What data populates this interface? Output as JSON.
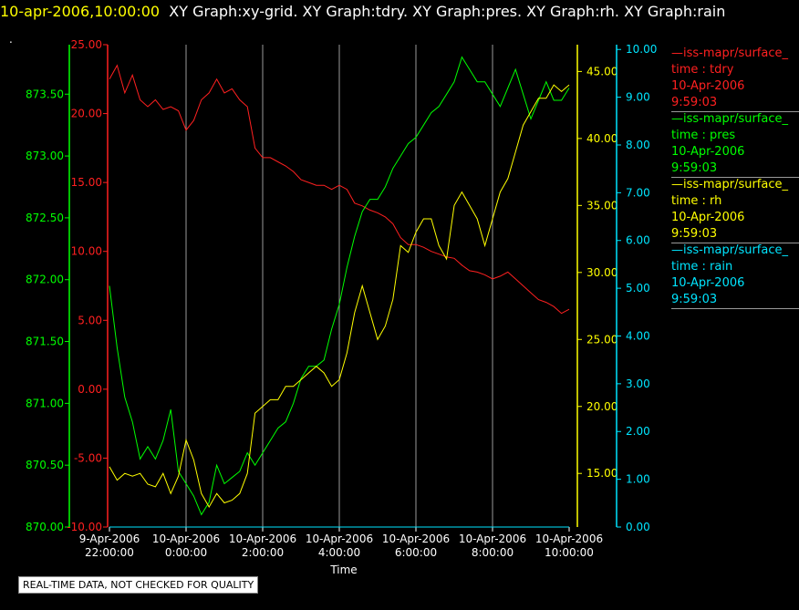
{
  "header": {
    "timestamp": "10-apr-2006,10:00:00",
    "graphs": "XY Graph:xy-grid.  XY Graph:tdry.  XY Graph:pres.  XY Graph:rh.  XY Graph:rain"
  },
  "header_dot": ".",
  "footer_note": "REAL-TIME DATA, NOT CHECKED FOR QUALITY",
  "legend": [
    {
      "line": "—iss-mapr/surface_",
      "var": "time : tdry",
      "date": "10-Apr-2006",
      "time": "9:59:03",
      "color": "#ff2020"
    },
    {
      "line": "—iss-mapr/surface_",
      "var": "time : pres",
      "date": "10-Apr-2006",
      "time": "9:59:03",
      "color": "#00ff00"
    },
    {
      "line": "—iss-mapr/surface_",
      "var": "time : rh",
      "date": "10-Apr-2006",
      "time": "9:59:03",
      "color": "#ffff00"
    },
    {
      "line": "—iss-mapr/surface_",
      "var": "time : rain",
      "date": "10-Apr-2006",
      "time": "9:59:03",
      "color": "#00e5ff"
    }
  ],
  "chart_data": {
    "type": "line",
    "xlabel": "Time",
    "x_ticks": [
      {
        "date": "9-Apr-2006",
        "time": "22:00:00",
        "hour": -2
      },
      {
        "date": "10-Apr-2006",
        "time": "0:00:00",
        "hour": 0
      },
      {
        "date": "10-Apr-2006",
        "time": "2:00:00",
        "hour": 2
      },
      {
        "date": "10-Apr-2006",
        "time": "4:00:00",
        "hour": 4
      },
      {
        "date": "10-Apr-2006",
        "time": "6:00:00",
        "hour": 6
      },
      {
        "date": "10-Apr-2006",
        "time": "8:00:00",
        "hour": 8
      },
      {
        "date": "10-Apr-2006",
        "time": "10:00:00",
        "hour": 10
      }
    ],
    "xlim_hours": [
      -2,
      10
    ],
    "grid": "vertical",
    "axes": [
      {
        "id": "pres",
        "color": "#00ff00",
        "ticks": [
          "870.00",
          "870.50",
          "871.00",
          "871.50",
          "872.00",
          "872.50",
          "873.00",
          "873.50"
        ],
        "range": [
          870,
          873.9
        ]
      },
      {
        "id": "tdry",
        "color": "#ff2020",
        "ticks": [
          "-10.00",
          "-5.00",
          "0.00",
          "5.00",
          "10.00",
          "15.00",
          "20.00",
          "25.00"
        ],
        "range": [
          -10,
          25
        ]
      },
      {
        "id": "rh",
        "color": "#ffff00",
        "ticks": [
          "15.00",
          "20.00",
          "25.00",
          "30.00",
          "35.00",
          "40.00",
          "45.00"
        ],
        "range": [
          11,
          47
        ]
      },
      {
        "id": "rain",
        "color": "#00e5ff",
        "ticks": [
          "0.00",
          "1.00",
          "2.00",
          "3.00",
          "4.00",
          "5.00",
          "6.00",
          "7.00",
          "8.00",
          "9.00",
          "10.00"
        ],
        "range": [
          0,
          10.1
        ]
      }
    ],
    "series": [
      {
        "id": "tdry",
        "axis": "tdry",
        "color": "#ff2020",
        "x": [
          -2,
          -1.8,
          -1.6,
          -1.4,
          -1.2,
          -1,
          -0.8,
          -0.6,
          -0.4,
          -0.2,
          0,
          0.2,
          0.4,
          0.6,
          0.8,
          1,
          1.2,
          1.4,
          1.6,
          1.8,
          2,
          2.2,
          2.4,
          2.6,
          2.8,
          3,
          3.2,
          3.4,
          3.6,
          3.8,
          4,
          4.2,
          4.4,
          4.6,
          4.8,
          5,
          5.2,
          5.4,
          5.6,
          5.8,
          6,
          6.2,
          6.4,
          6.6,
          6.8,
          7,
          7.2,
          7.4,
          7.6,
          7.8,
          8,
          8.2,
          8.4,
          8.6,
          8.8,
          9,
          9.2,
          9.4,
          9.6,
          9.8,
          10
        ],
        "values": [
          22.5,
          23.5,
          21.5,
          22.8,
          21,
          20.5,
          21,
          20.3,
          20.5,
          20.2,
          18.8,
          19.5,
          21,
          21.5,
          22.5,
          21.5,
          21.8,
          21,
          20.5,
          17.5,
          16.8,
          16.8,
          16.5,
          16.2,
          15.8,
          15.2,
          15,
          14.8,
          14.8,
          14.5,
          14.8,
          14.5,
          13.5,
          13.3,
          13,
          12.8,
          12.5,
          12,
          11,
          10.5,
          10.5,
          10.3,
          10,
          9.8,
          9.6,
          9.5,
          9,
          8.6,
          8.5,
          8.3,
          8,
          8.2,
          8.5,
          8,
          7.5,
          7,
          6.5,
          6.3,
          6,
          5.5,
          5.8
        ]
      },
      {
        "id": "pres",
        "axis": "pres",
        "color": "#00ff00",
        "x": [
          -2,
          -1.8,
          -1.6,
          -1.4,
          -1.2,
          -1,
          -0.8,
          -0.6,
          -0.4,
          -0.2,
          0,
          0.2,
          0.4,
          0.6,
          0.8,
          1,
          1.2,
          1.4,
          1.6,
          1.8,
          2,
          2.2,
          2.4,
          2.6,
          2.8,
          3,
          3.2,
          3.4,
          3.6,
          3.8,
          4,
          4.2,
          4.4,
          4.6,
          4.8,
          5,
          5.2,
          5.4,
          5.6,
          5.8,
          6,
          6.2,
          6.4,
          6.6,
          6.8,
          7,
          7.2,
          7.4,
          7.6,
          7.8,
          8,
          8.2,
          8.4,
          8.6,
          8.8,
          9,
          9.2,
          9.4,
          9.6,
          9.8,
          10
        ],
        "values": [
          871.95,
          871.45,
          871.05,
          870.85,
          870.55,
          870.65,
          870.55,
          870.7,
          870.95,
          870.45,
          870.35,
          870.25,
          870.1,
          870.2,
          870.5,
          870.35,
          870.4,
          870.45,
          870.6,
          870.5,
          870.6,
          870.7,
          870.8,
          870.85,
          871,
          871.2,
          871.3,
          871.3,
          871.35,
          871.6,
          871.8,
          872.1,
          872.35,
          872.55,
          872.65,
          872.65,
          872.75,
          872.9,
          873.0,
          873.1,
          873.15,
          873.25,
          873.35,
          873.4,
          873.5,
          873.6,
          873.8,
          873.7,
          873.6,
          873.6,
          873.5,
          873.4,
          873.55,
          873.7,
          873.5,
          873.3,
          873.45,
          873.6,
          873.45,
          873.45,
          873.55
        ]
      },
      {
        "id": "rh",
        "axis": "rh",
        "color": "#ffff00",
        "x": [
          -2,
          -1.8,
          -1.6,
          -1.4,
          -1.2,
          -1,
          -0.8,
          -0.6,
          -0.4,
          -0.2,
          0,
          0.2,
          0.4,
          0.6,
          0.8,
          1,
          1.2,
          1.4,
          1.6,
          1.8,
          2,
          2.2,
          2.4,
          2.6,
          2.8,
          3,
          3.2,
          3.4,
          3.6,
          3.8,
          4,
          4.2,
          4.4,
          4.6,
          4.8,
          5,
          5.2,
          5.4,
          5.6,
          5.8,
          6,
          6.2,
          6.4,
          6.6,
          6.8,
          7,
          7.2,
          7.4,
          7.6,
          7.8,
          8,
          8.2,
          8.4,
          8.6,
          8.8,
          9,
          9.2,
          9.4,
          9.6,
          9.8,
          10
        ],
        "values": [
          15.5,
          14.5,
          15,
          14.8,
          15,
          14.2,
          14,
          15,
          13.5,
          14.8,
          17.5,
          16,
          13.5,
          12.5,
          13.5,
          12.8,
          13,
          13.5,
          15,
          19.5,
          20,
          20.5,
          20.5,
          21.5,
          21.5,
          22,
          22.5,
          23,
          22.5,
          21.5,
          22,
          24,
          27,
          29,
          27,
          25,
          26,
          28,
          32,
          31.5,
          33,
          34,
          34,
          32,
          31,
          35,
          36,
          35,
          34,
          32,
          34,
          36,
          37,
          39,
          41,
          42,
          43,
          43,
          44,
          43.5,
          44
        ]
      },
      {
        "id": "rain",
        "axis": "rain",
        "color": "#00e5ff",
        "x": [
          -2,
          10
        ],
        "values": [
          0,
          0
        ]
      }
    ]
  }
}
